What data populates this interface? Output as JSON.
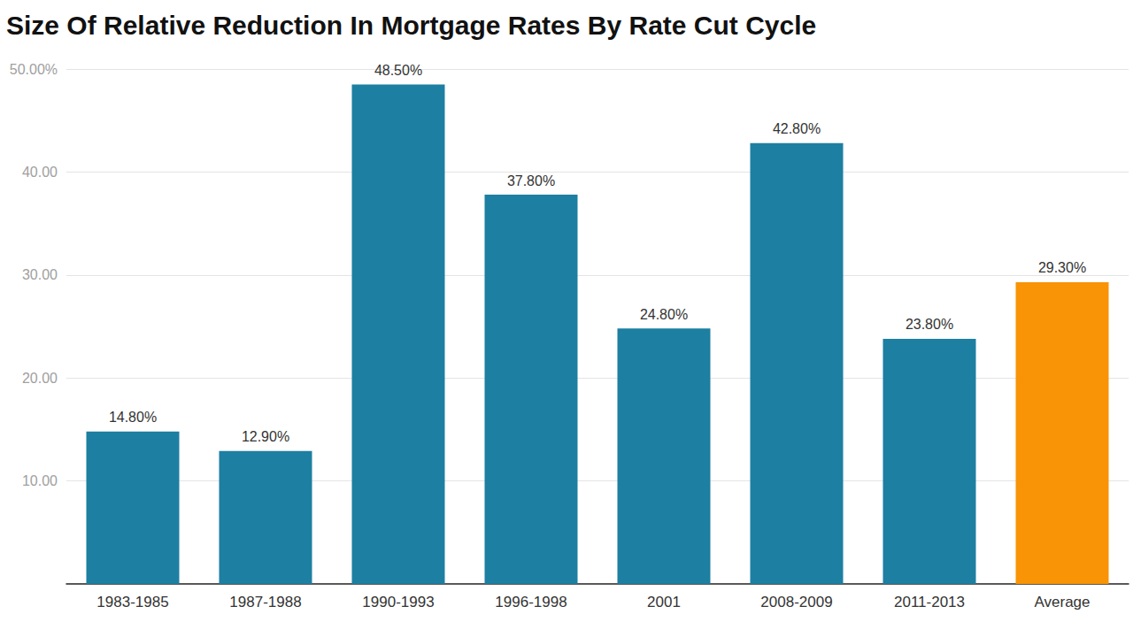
{
  "chart_data": {
    "type": "bar",
    "title": "Size Of Relative Reduction In Mortgage Rates By Rate Cut Cycle",
    "categories": [
      "1983-1985",
      "1987-1988",
      "1990-1993",
      "1996-1998",
      "2001",
      "2008-2009",
      "2011-2013",
      "Average"
    ],
    "values": [
      14.8,
      12.9,
      48.5,
      37.8,
      24.8,
      42.8,
      23.8,
      29.3
    ],
    "value_labels": [
      "14.80%",
      "12.90%",
      "48.50%",
      "37.80%",
      "24.80%",
      "42.80%",
      "23.80%",
      "29.30%"
    ],
    "colors": [
      "#1d7fa1",
      "#1d7fa1",
      "#1d7fa1",
      "#1d7fa1",
      "#1d7fa1",
      "#1d7fa1",
      "#1d7fa1",
      "#f89406"
    ],
    "ylim": [
      0,
      50
    ],
    "yticks": [
      {
        "value": 10,
        "label": "10.00"
      },
      {
        "value": 20,
        "label": "20.00"
      },
      {
        "value": 30,
        "label": "30.00"
      },
      {
        "value": 40,
        "label": "40.00"
      },
      {
        "value": 50,
        "label": "50.00%"
      }
    ],
    "grid": true,
    "data_labels": true
  }
}
